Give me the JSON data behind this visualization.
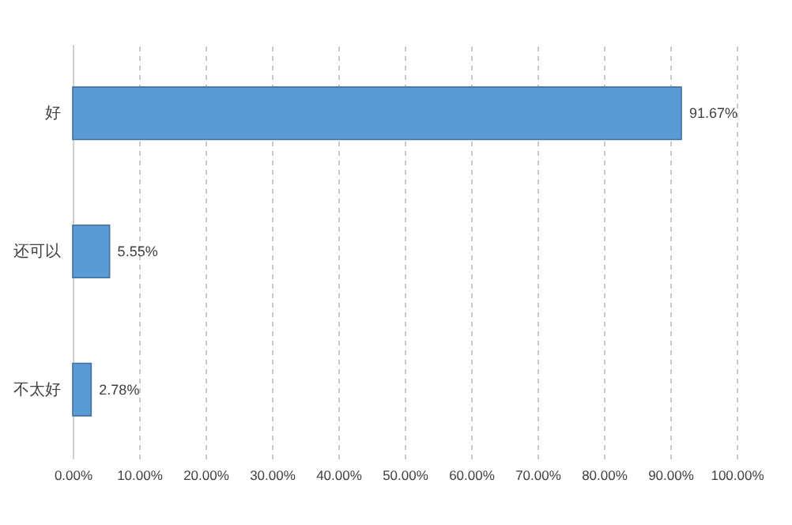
{
  "chart_data": {
    "type": "bar",
    "orientation": "horizontal",
    "categories": [
      "好",
      "还可以",
      "不太好"
    ],
    "values": [
      91.67,
      5.55,
      2.78
    ],
    "color": "#5b9bd5",
    "value_labels": [
      "91.67%",
      "5.55%",
      "2.78%"
    ],
    "xlim": [
      0,
      100
    ],
    "xticks": [
      {
        "value": 0,
        "label": "0.00%"
      },
      {
        "value": 10,
        "label": "10.00%"
      },
      {
        "value": 20,
        "label": "20.00%"
      },
      {
        "value": 30,
        "label": "30.00%"
      },
      {
        "value": 40,
        "label": "40.00%"
      },
      {
        "value": 50,
        "label": "50.00%"
      },
      {
        "value": 60,
        "label": "60.00%"
      },
      {
        "value": 70,
        "label": "70.00%"
      },
      {
        "value": 80,
        "label": "80.00%"
      },
      {
        "value": 90,
        "label": "90.00%"
      },
      {
        "value": 100,
        "label": "100.00%"
      }
    ],
    "grid": "x"
  }
}
